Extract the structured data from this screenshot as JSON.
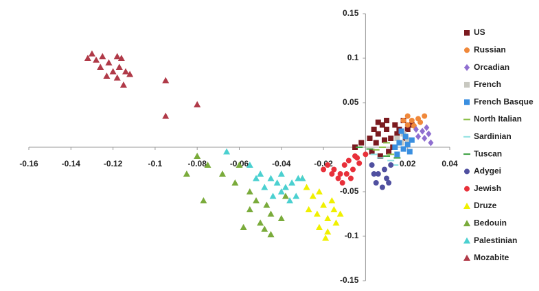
{
  "chart_data": {
    "type": "scatter",
    "xlim": [
      -0.16,
      0.04
    ],
    "xticks": [
      -0.16,
      -0.14,
      -0.12,
      -0.1,
      -0.08,
      -0.06,
      -0.04,
      -0.02,
      0.02,
      0.04
    ],
    "ylim": [
      -0.15,
      0.15
    ],
    "yticks": [
      0.15,
      0.1,
      0.05,
      -0.05,
      -0.1,
      -0.15
    ],
    "grid": false,
    "legend": "right",
    "series": [
      {
        "name": "US",
        "color": "#7b1a1f",
        "marker": "square",
        "x": [
          0.002,
          0.004,
          0.006,
          0.008,
          0.01,
          0.012,
          0.014,
          0.016,
          0.018,
          0.02,
          0.005,
          0.009,
          0.013,
          0.003,
          0.007,
          0.011,
          0.015,
          0.019,
          0.022,
          0.006,
          -0.005,
          -0.002,
          0.01
        ],
        "values": [
          0.01,
          0.02,
          0.015,
          0.025,
          0.02,
          0.01,
          0.025,
          0.02,
          0.03,
          0.02,
          0.005,
          0.008,
          0.0,
          -0.005,
          -0.01,
          -0.005,
          0.015,
          0.01,
          0.025,
          0.028,
          0.0,
          0.005,
          0.03
        ]
      },
      {
        "name": "Russian",
        "color": "#f0883a",
        "marker": "circle",
        "x": [
          0.018,
          0.02,
          0.022,
          0.025,
          0.026,
          0.023,
          0.028,
          0.02
        ],
        "values": [
          0.03,
          0.035,
          0.03,
          0.032,
          0.028,
          0.024,
          0.035,
          0.025
        ]
      },
      {
        "name": "Orcadian",
        "color": "#8f6fd0",
        "marker": "diamond",
        "x": [
          0.024,
          0.027,
          0.029,
          0.03,
          0.028,
          0.031,
          0.025
        ],
        "values": [
          0.02,
          0.018,
          0.022,
          0.015,
          0.01,
          0.005,
          0.012
        ]
      },
      {
        "name": "French",
        "color": "#c8c8c0",
        "marker": "square",
        "x": [
          0.015,
          0.018,
          0.02,
          0.017
        ],
        "values": [
          0.01,
          0.015,
          0.008,
          0.005
        ]
      },
      {
        "name": "French Basque",
        "color": "#3a8fe0",
        "marker": "square",
        "x": [
          0.014,
          0.016,
          0.018,
          0.02,
          0.022,
          0.019,
          0.015,
          0.021,
          0.017
        ],
        "values": [
          0.0,
          0.005,
          -0.002,
          0.003,
          0.008,
          0.012,
          -0.008,
          -0.005,
          0.018
        ]
      },
      {
        "name": "North Italian",
        "color": "#8cc04a",
        "marker": "dash",
        "x": [
          0.005,
          0.008,
          0.012,
          0.01
        ],
        "values": [
          -0.003,
          0.0,
          -0.008,
          0.005
        ]
      },
      {
        "name": "Sardinian",
        "color": "#8fe0e0",
        "marker": "dash",
        "x": [
          0.004,
          0.007,
          0.012,
          0.014
        ],
        "values": [
          -0.008,
          -0.012,
          -0.015,
          -0.02
        ]
      },
      {
        "name": "Tuscan",
        "color": "#3aa040",
        "marker": "dash",
        "x": [
          -0.003,
          0.002,
          0.01,
          0.015
        ],
        "values": [
          0.0,
          -0.002,
          -0.01,
          -0.012
        ]
      },
      {
        "name": "Adygei",
        "color": "#5050a0",
        "marker": "circle",
        "x": [
          0.003,
          0.006,
          0.009,
          0.01,
          0.005,
          0.008,
          0.012,
          0.004,
          0.011
        ],
        "values": [
          -0.02,
          -0.03,
          -0.025,
          -0.035,
          -0.04,
          -0.045,
          -0.02,
          -0.03,
          -0.04
        ]
      },
      {
        "name": "Jewish",
        "color": "#e8303a",
        "marker": "circle",
        "x": [
          -0.018,
          -0.015,
          -0.012,
          -0.01,
          -0.008,
          -0.005,
          -0.013,
          -0.009,
          -0.006,
          -0.003,
          -0.016,
          -0.011,
          -0.004,
          0.0,
          -0.02,
          -0.007
        ],
        "values": [
          -0.02,
          -0.025,
          -0.03,
          -0.02,
          -0.015,
          -0.01,
          -0.035,
          -0.03,
          -0.025,
          -0.018,
          -0.03,
          -0.04,
          -0.012,
          -0.008,
          -0.025,
          -0.035
        ]
      },
      {
        "name": "Druze",
        "color": "#f0f000",
        "marker": "triangle",
        "x": [
          -0.03,
          -0.028,
          -0.025,
          -0.022,
          -0.027,
          -0.02,
          -0.018,
          -0.015,
          -0.022,
          -0.018,
          -0.014,
          -0.012,
          -0.019,
          -0.023,
          -0.016
        ],
        "values": [
          -0.035,
          -0.045,
          -0.055,
          -0.05,
          -0.07,
          -0.065,
          -0.08,
          -0.07,
          -0.09,
          -0.095,
          -0.085,
          -0.075,
          -0.102,
          -0.075,
          -0.06
        ]
      },
      {
        "name": "Bedouin",
        "color": "#7aab3b",
        "marker": "triangle",
        "x": [
          -0.08,
          -0.075,
          -0.085,
          -0.077,
          -0.068,
          -0.06,
          -0.062,
          -0.055,
          -0.055,
          -0.05,
          -0.048,
          -0.045,
          -0.052,
          -0.058,
          -0.045,
          -0.04,
          -0.047,
          -0.038
        ],
        "values": [
          -0.01,
          -0.02,
          -0.03,
          -0.06,
          -0.03,
          -0.02,
          -0.04,
          -0.05,
          -0.07,
          -0.085,
          -0.092,
          -0.075,
          -0.06,
          -0.09,
          -0.098,
          -0.08,
          -0.065,
          -0.055
        ]
      },
      {
        "name": "Palestinian",
        "color": "#4bd0d0",
        "marker": "triangle",
        "x": [
          -0.066,
          -0.055,
          -0.05,
          -0.045,
          -0.042,
          -0.04,
          -0.038,
          -0.035,
          -0.032,
          -0.048,
          -0.044,
          -0.036,
          -0.03,
          -0.04,
          -0.052,
          -0.033
        ],
        "values": [
          -0.005,
          -0.02,
          -0.03,
          -0.035,
          -0.04,
          -0.03,
          -0.045,
          -0.04,
          -0.035,
          -0.045,
          -0.055,
          -0.06,
          -0.035,
          -0.05,
          -0.035,
          -0.055
        ]
      },
      {
        "name": "Mozabite",
        "color": "#b03a48",
        "marker": "triangle",
        "x": [
          -0.13,
          -0.132,
          -0.128,
          -0.125,
          -0.122,
          -0.126,
          -0.118,
          -0.116,
          -0.12,
          -0.117,
          -0.123,
          -0.114,
          -0.118,
          -0.112,
          -0.115,
          -0.095,
          -0.08,
          -0.095
        ],
        "values": [
          0.105,
          0.1,
          0.098,
          0.102,
          0.095,
          0.09,
          0.102,
          0.1,
          0.085,
          0.09,
          0.08,
          0.085,
          0.078,
          0.082,
          0.07,
          0.075,
          0.048,
          0.035
        ]
      }
    ]
  }
}
